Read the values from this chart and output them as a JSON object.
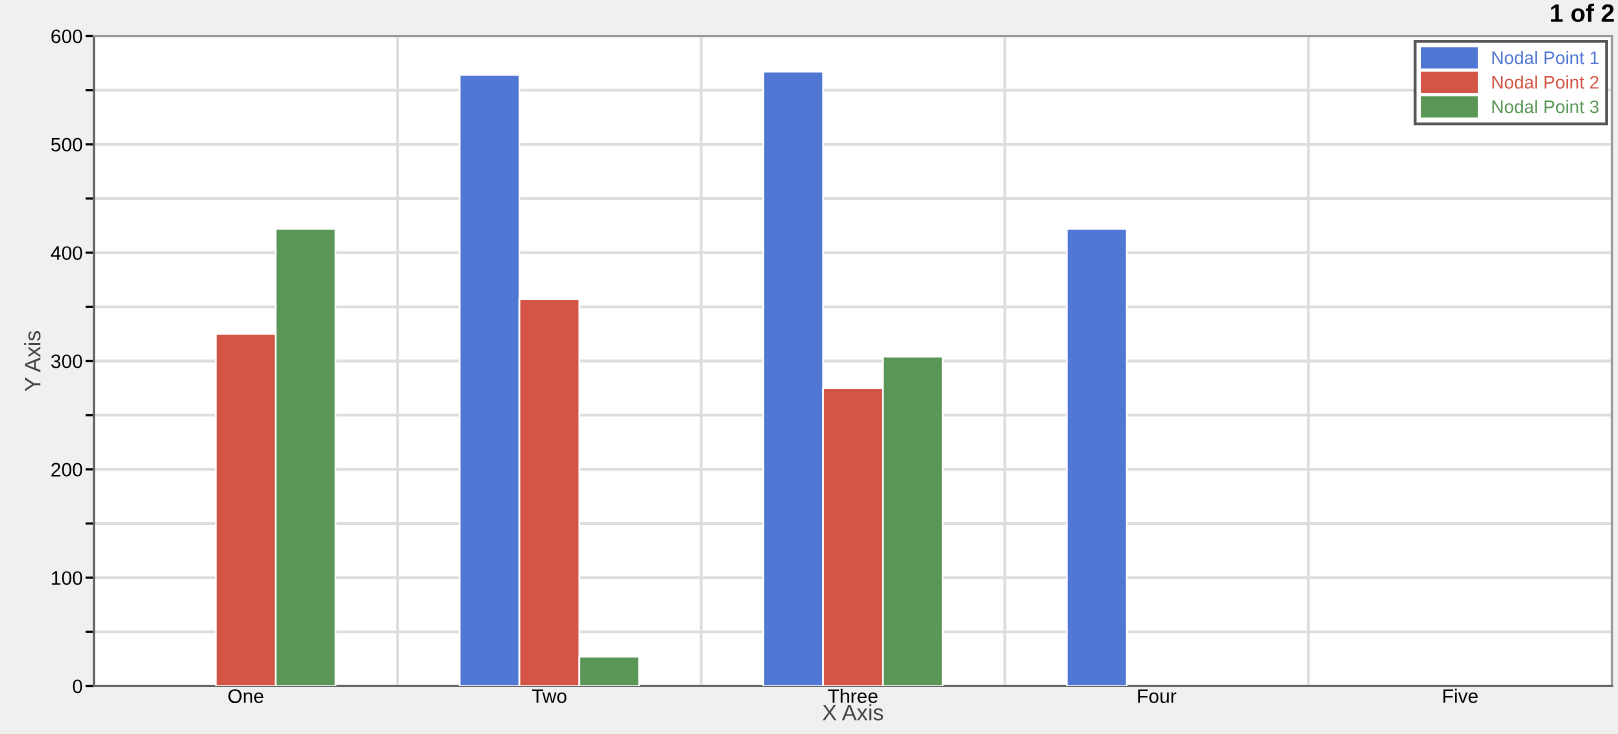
{
  "chart_data": {
    "type": "bar",
    "xlabel": "X Axis",
    "ylabel": "Y Axis",
    "categories": [
      "One",
      "Two",
      "Three",
      "Four",
      "Five"
    ],
    "series": [
      {
        "name": "Nodal Point 1",
        "color": "#5077d3",
        "values": [
          null,
          564,
          567,
          422,
          null
        ]
      },
      {
        "name": "Nodal Point 2",
        "color": "#d45545",
        "values": [
          325,
          357,
          275,
          null,
          null
        ]
      },
      {
        "name": "Nodal Point 3",
        "color": "#5a9655",
        "values": [
          422,
          27,
          304,
          null,
          null
        ]
      }
    ],
    "ylim": [
      0,
      600
    ],
    "yticks": [
      0,
      {
        "value": 50,
        "label": null
      },
      100,
      {
        "value": 150,
        "label": null
      },
      200,
      {
        "value": 250,
        "label": null
      },
      300,
      {
        "value": 350,
        "label": null
      },
      400,
      {
        "value": 450,
        "label": null
      },
      500,
      {
        "value": 550,
        "label": null
      },
      600
    ],
    "grid": true,
    "legend": "top right",
    "annotations": [
      "1 of 2"
    ]
  }
}
